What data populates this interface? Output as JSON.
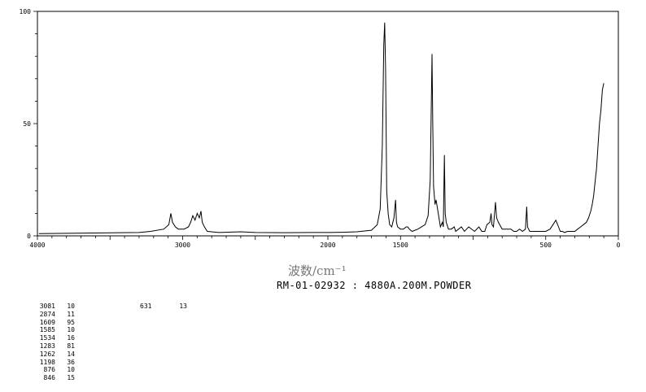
{
  "chart_data": {
    "type": "line",
    "xlabel": "波数/cm⁻¹",
    "subtitle": "RM-01-02932 : 4880A.200M.POWDER",
    "xlim": [
      4000,
      0
    ],
    "ylim": [
      0,
      100
    ],
    "x_ticks": [
      4000,
      3000,
      2000,
      1500,
      500,
      0
    ],
    "x_tick_labels": [
      "4000",
      "3000",
      "2000",
      "1500",
      "500",
      "0"
    ],
    "y_ticks": [
      0,
      50,
      100
    ],
    "y_tick_labels": [
      "0",
      "50",
      "100"
    ],
    "series": [
      {
        "x": [
          3990,
          3300,
          3220,
          3130,
          3095,
          3081,
          3070,
          3050,
          3030,
          2990,
          2960,
          2945,
          2930,
          2915,
          2900,
          2885,
          2874,
          2865,
          2850,
          2830,
          2750,
          2600,
          2500,
          2300,
          2100,
          2000,
          1900,
          1800,
          1700,
          1660,
          1640,
          1625,
          1615,
          1609,
          1603,
          1595,
          1585,
          1575,
          1560,
          1545,
          1534,
          1528,
          1520,
          1500,
          1480,
          1460,
          1450,
          1440,
          1420,
          1380,
          1330,
          1310,
          1295,
          1283,
          1278,
          1272,
          1262,
          1255,
          1245,
          1225,
          1212,
          1205,
          1198,
          1192,
          1185,
          1170,
          1150,
          1130,
          1120,
          1100,
          1080,
          1060,
          1045,
          1030,
          990,
          960,
          950,
          940,
          920,
          905,
          885,
          876,
          870,
          860,
          846,
          838,
          826,
          800,
          760,
          740,
          720,
          700,
          680,
          660,
          640,
          631,
          625,
          610,
          590,
          575,
          560,
          540,
          520,
          500,
          470,
          450,
          430,
          412,
          400,
          385,
          370,
          350,
          330,
          300,
          280,
          260,
          240,
          220,
          205,
          190,
          180,
          170,
          160,
          150,
          140,
          130,
          120,
          110,
          100
        ],
        "y": [
          1,
          1.5,
          2,
          3,
          5,
          10,
          6,
          4,
          3,
          3,
          4,
          6,
          9,
          7,
          10,
          8,
          11,
          6,
          4,
          2,
          1.5,
          1.8,
          1.5,
          1.4,
          1.5,
          1.5,
          1.6,
          1.8,
          2.5,
          5,
          12,
          40,
          85,
          95,
          75,
          20,
          10,
          5,
          4,
          8,
          16,
          6,
          4,
          3,
          3,
          4,
          4,
          3,
          2,
          3,
          5,
          9,
          25,
          81,
          50,
          22,
          14,
          16,
          12,
          4,
          6,
          4,
          36,
          10,
          6,
          3,
          3,
          4,
          2,
          3,
          4,
          2,
          3,
          4,
          2,
          4,
          3,
          2,
          2,
          5,
          6,
          10,
          5,
          4,
          15,
          8,
          6,
          3,
          3,
          3,
          2,
          2,
          3,
          2,
          3,
          13,
          4,
          2,
          2,
          2,
          2,
          2,
          2,
          2,
          3,
          5,
          7,
          4,
          2,
          2,
          1.5,
          2,
          2,
          2,
          3,
          4,
          5,
          6,
          8,
          11,
          14,
          18,
          24,
          30,
          40,
          50,
          56,
          65,
          68
        ]
      }
    ],
    "peak_table_left": [
      {
        "w": "3081",
        "i": "10"
      },
      {
        "w": "2874",
        "i": "11"
      },
      {
        "w": "1609",
        "i": "95"
      },
      {
        "w": "1585",
        "i": "10"
      },
      {
        "w": "1534",
        "i": "16"
      },
      {
        "w": "1283",
        "i": "81"
      },
      {
        "w": "1262",
        "i": "14"
      },
      {
        "w": "1198",
        "i": "36"
      },
      {
        "w": "876",
        "i": "10"
      },
      {
        "w": "846",
        "i": "15"
      }
    ],
    "peak_table_right": [
      {
        "w": "631",
        "i": "13"
      }
    ]
  }
}
